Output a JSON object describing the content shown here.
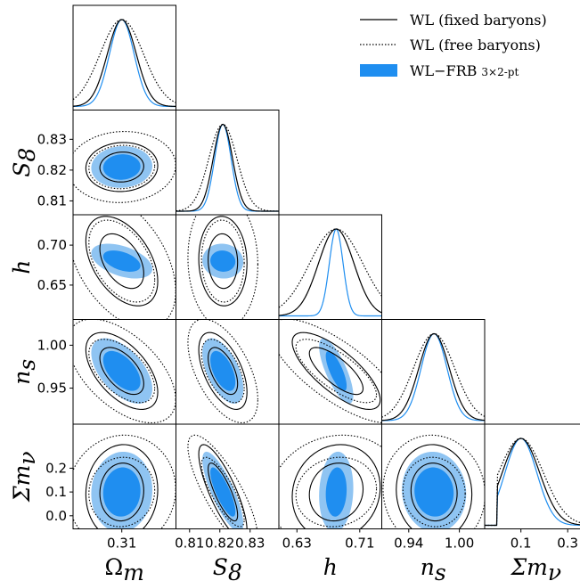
{
  "chart_data": {
    "type": "corner",
    "parameters": [
      {
        "name": "Ωm",
        "symbol": "Ω",
        "sub": "m",
        "italic": false,
        "mean": 0.31,
        "sigma": 0.008,
        "range": [
          0.283,
          0.34
        ],
        "ticks": [
          0.31
        ],
        "tick_labels": [
          "0.31"
        ]
      },
      {
        "name": "S8",
        "symbol": "S",
        "sub": "8",
        "italic": true,
        "mean": 0.821,
        "sigma": 0.0032,
        "range": [
          0.8055,
          0.8395
        ],
        "ticks": [
          0.81,
          0.82,
          0.83
        ],
        "tick_labels": [
          "0.81",
          "0.82",
          "0.83"
        ]
      },
      {
        "name": "h",
        "symbol": "h",
        "sub": "",
        "italic": true,
        "mean": 0.68,
        "sigma": 0.025,
        "range": [
          0.607,
          0.738
        ],
        "ticks": [
          0.65,
          0.7
        ],
        "x_ticks": [
          0.63,
          0.71
        ],
        "tick_labels": [
          "0.65",
          "0.70"
        ],
        "x_tick_labels": [
          "0.63",
          "0.71"
        ]
      },
      {
        "name": "ns",
        "symbol": "n",
        "sub": "s",
        "italic": true,
        "mean": 0.97,
        "sigma": 0.018,
        "range": [
          0.908,
          1.03
        ],
        "ticks": [
          0.95,
          1.0
        ],
        "x_ticks": [
          0.94,
          1.0
        ],
        "tick_labels": [
          "0.95",
          "1.00"
        ],
        "x_tick_labels": [
          "0.94",
          "1.00"
        ]
      },
      {
        "name": "Σmν",
        "symbol": "Σm",
        "sub": "ν",
        "italic": true,
        "mean": 0.1,
        "sigma": 0.08,
        "range": [
          -0.055,
          0.385
        ],
        "ticks": [
          0.0,
          0.1,
          0.2
        ],
        "x_ticks": [
          0.1,
          0.3
        ],
        "tick_labels": [
          "0.0",
          "0.1",
          "0.2"
        ],
        "x_tick_labels": [
          "0.1",
          "0.3"
        ]
      }
    ],
    "series": [
      {
        "name": "WL (fixed baryons)",
        "style": "solid",
        "color": "#000000"
      },
      {
        "name": "WL (free baryons)",
        "style": "dotted",
        "color": "#000000"
      },
      {
        "name": "WL−FRB",
        "name_suffix": "3×2-pt",
        "style": "filled",
        "color": "#1f8ef0"
      }
    ],
    "legend_position": "top-right",
    "contour_levels": [
      "68%",
      "95%"
    ]
  },
  "colors": {
    "accent": "#1f8ef0",
    "accent_light": "#8fc4f2",
    "line": "#000000"
  }
}
